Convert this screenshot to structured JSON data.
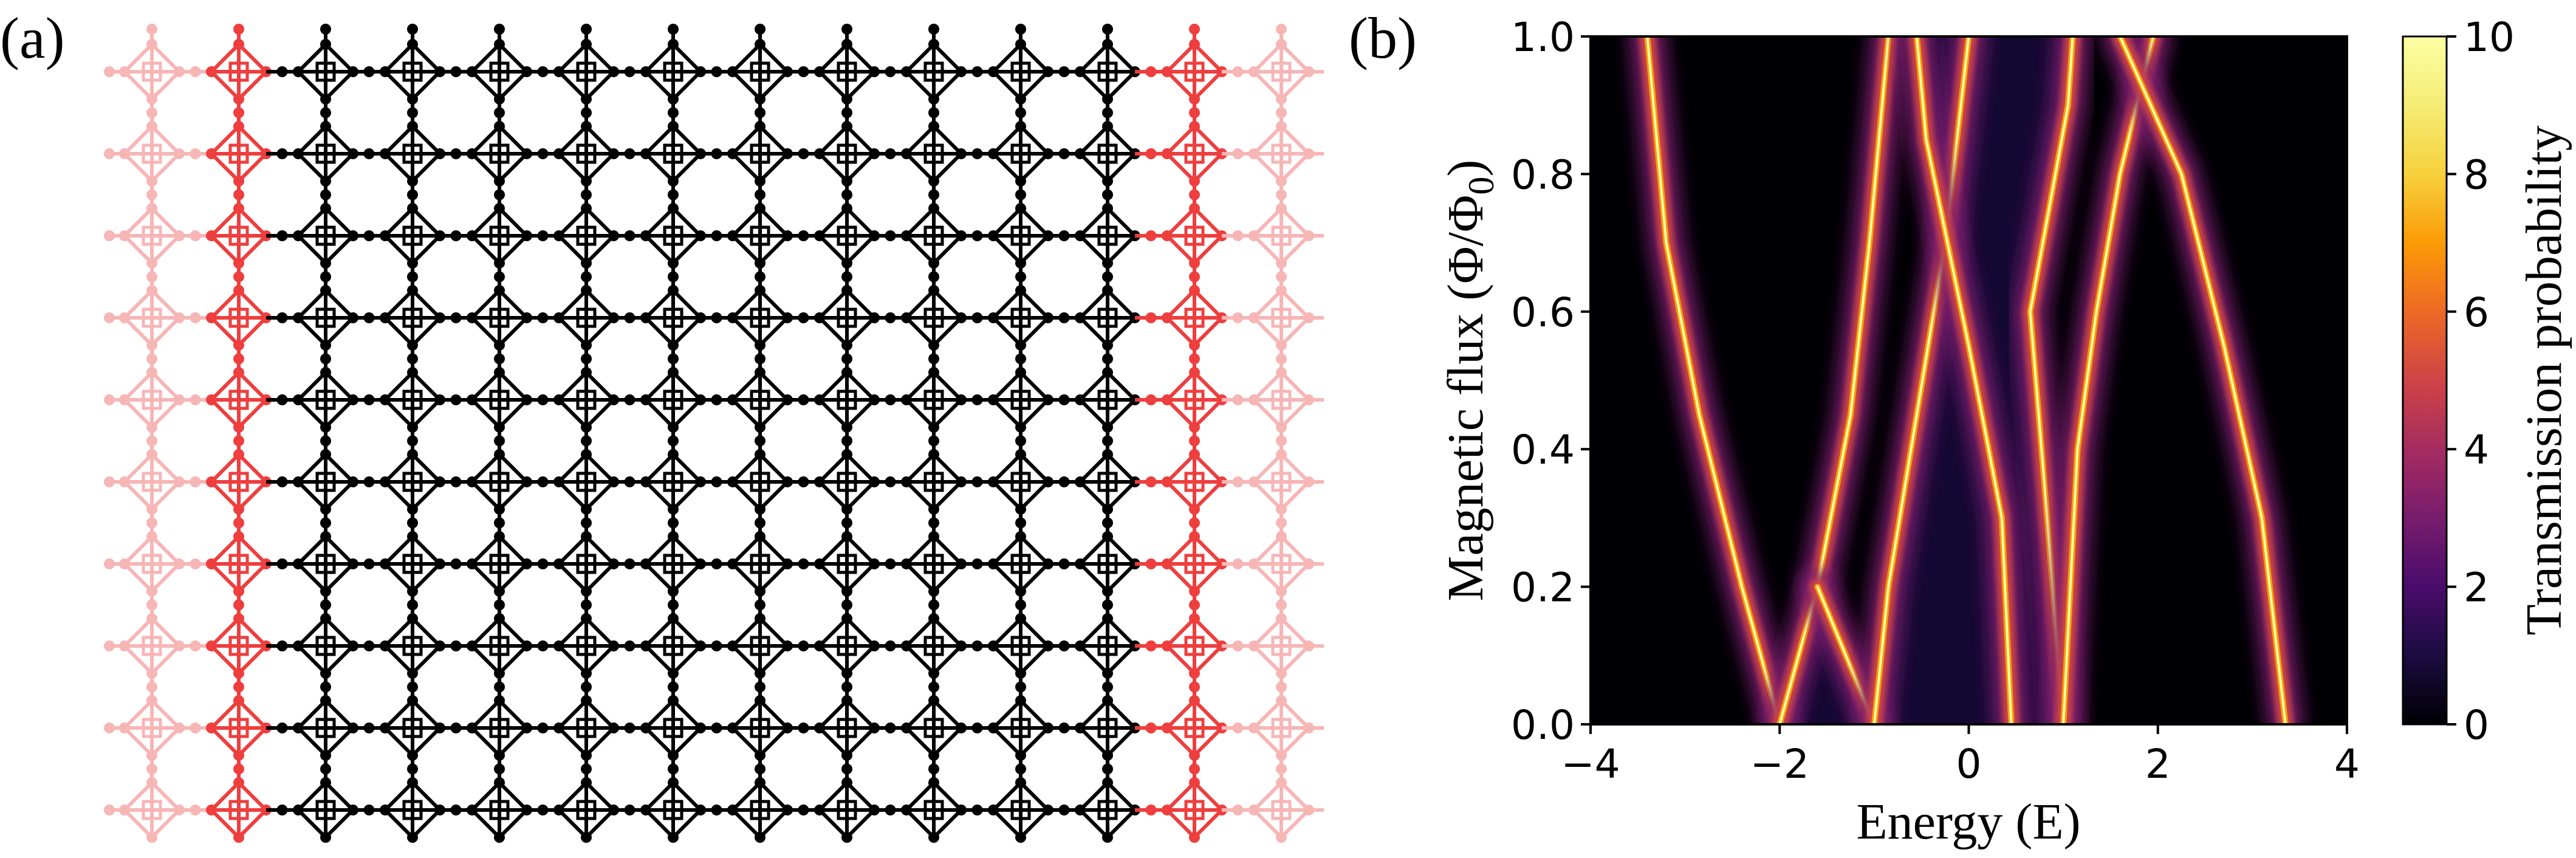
{
  "panels": {
    "a_label": "(a)",
    "b_label": "(b)"
  },
  "lattice": {
    "description_cols": 14,
    "description_rows": 10,
    "lead_cols_left": 2,
    "lead_cols_right": 2,
    "colors": {
      "outer_lead": "#f7b6b6",
      "inner_lead": "#ee3e3e",
      "scatterer": "#000000"
    }
  },
  "chart_data": {
    "type": "heatmap",
    "title": "",
    "xlabel": "Energy (E)",
    "ylabel_main": "Magnetic flux (",
    "ylabel_phi": "Φ/Φ",
    "ylabel_sub": "0",
    "ylabel_close": ")",
    "xlim": [
      -4,
      4
    ],
    "ylim": [
      0,
      1
    ],
    "xticks": [
      "−4",
      "−2",
      "0",
      "2",
      "4"
    ],
    "xtick_values": [
      -4,
      -2,
      0,
      2,
      4
    ],
    "yticks": [
      "0.0",
      "0.2",
      "0.4",
      "0.6",
      "0.8",
      "1.0"
    ],
    "ytick_values": [
      0,
      0.2,
      0.4,
      0.6,
      0.8,
      1.0
    ],
    "colorbar": {
      "label": "Transmission probability",
      "range": [
        0,
        10
      ],
      "ticks": [
        "0",
        "2",
        "4",
        "6",
        "8",
        "10"
      ],
      "tick_values": [
        0,
        2,
        4,
        6,
        8,
        10
      ],
      "colormap": "inferno"
    },
    "transmission_bands": [
      {
        "name": "band-outer-left",
        "points": [
          [
            -2.0,
            0.0
          ],
          [
            -2.4,
            0.2
          ],
          [
            -2.85,
            0.45
          ],
          [
            -3.2,
            0.7
          ],
          [
            -3.4,
            1.0
          ]
        ]
      },
      {
        "name": "band-left-cross-up",
        "points": [
          [
            -2.0,
            0.0
          ],
          [
            -1.6,
            0.2
          ],
          [
            -1.25,
            0.45
          ],
          [
            -1.05,
            0.7
          ],
          [
            -0.85,
            1.0
          ]
        ]
      },
      {
        "name": "band-left-cross-down",
        "points": [
          [
            -1.0,
            0.0
          ],
          [
            -1.6,
            0.2
          ]
        ]
      },
      {
        "name": "band-inner-left",
        "points": [
          [
            -1.0,
            0.0
          ],
          [
            -0.85,
            0.2
          ],
          [
            -0.55,
            0.45
          ],
          [
            -0.25,
            0.7
          ],
          [
            0.0,
            1.0
          ]
        ]
      },
      {
        "name": "band-center-left",
        "points": [
          [
            0.45,
            0.0
          ],
          [
            0.35,
            0.3
          ],
          [
            0.0,
            0.55
          ],
          [
            -0.45,
            0.85
          ],
          [
            -0.55,
            1.0
          ]
        ]
      },
      {
        "name": "band-center-right",
        "points": [
          [
            1.0,
            0.0
          ],
          [
            0.8,
            0.35
          ],
          [
            0.65,
            0.6
          ],
          [
            1.05,
            0.9
          ],
          [
            1.1,
            1.0
          ]
        ]
      },
      {
        "name": "band-right-cross",
        "points": [
          [
            1.0,
            0.0
          ],
          [
            1.15,
            0.4
          ],
          [
            1.35,
            0.6
          ],
          [
            1.6,
            0.8
          ],
          [
            1.95,
            1.0
          ]
        ]
      },
      {
        "name": "band-outer-right",
        "points": [
          [
            3.35,
            0.0
          ],
          [
            3.1,
            0.3
          ],
          [
            2.7,
            0.55
          ],
          [
            2.25,
            0.8
          ],
          [
            1.6,
            1.0
          ]
        ]
      }
    ]
  }
}
